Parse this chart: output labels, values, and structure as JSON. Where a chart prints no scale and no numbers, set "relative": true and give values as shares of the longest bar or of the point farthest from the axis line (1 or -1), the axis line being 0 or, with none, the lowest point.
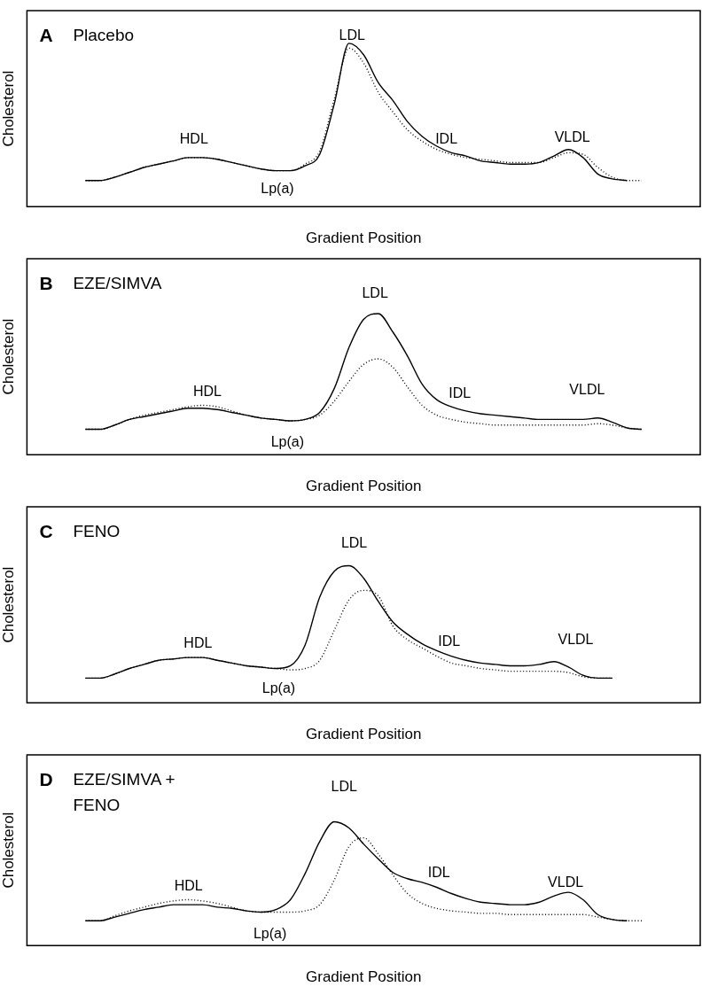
{
  "chart_data": [
    {
      "type": "line",
      "title": "A Placebo",
      "xlabel": "Gradient Position",
      "ylabel": "Cholesterol",
      "relative": true,
      "legend": false,
      "grid": false,
      "marker": "none",
      "annotations": [
        "HDL",
        "Lp(a)",
        "LDL",
        "IDL",
        "VLDL"
      ],
      "categories": [
        null,
        null,
        null,
        null,
        null,
        null,
        null,
        null,
        null,
        null,
        null,
        null,
        null,
        null,
        null,
        null,
        null,
        null,
        null,
        null,
        null,
        null,
        null,
        null,
        null,
        null,
        null,
        null,
        null,
        null,
        null,
        null,
        null,
        null,
        null,
        null,
        null,
        null,
        null,
        null,
        null,
        null,
        null,
        null,
        null,
        null,
        null
      ],
      "series": [
        {
          "color": "#000000",
          "line_style": "solid",
          "values": [
            null,
            null,
            null,
            null,
            0.16,
            0.16,
            0.18,
            0.21,
            0.24,
            0.26,
            0.28,
            0.3,
            0.3,
            0.29,
            0.27,
            0.25,
            0.23,
            0.22,
            0.22,
            0.25,
            0.32,
            0.63,
            1.0,
            0.93,
            0.76,
            0.65,
            0.52,
            0.43,
            0.37,
            0.33,
            0.31,
            0.28,
            0.27,
            0.26,
            0.26,
            0.27,
            0.31,
            0.35,
            0.3,
            0.2,
            0.17,
            0.16,
            null,
            null,
            null,
            null,
            null
          ]
        },
        {
          "color": "#000000",
          "line_style": "dotted",
          "values": [
            null,
            null,
            null,
            null,
            0.16,
            0.16,
            0.18,
            0.21,
            0.24,
            0.26,
            0.28,
            0.3,
            0.3,
            0.29,
            0.27,
            0.25,
            0.23,
            0.22,
            0.22,
            0.26,
            0.34,
            0.66,
            0.97,
            0.88,
            0.7,
            0.58,
            0.47,
            0.4,
            0.35,
            0.32,
            0.3,
            0.29,
            0.28,
            0.27,
            0.27,
            0.27,
            0.3,
            0.33,
            0.32,
            0.24,
            0.18,
            0.16,
            0.16,
            null,
            null,
            null,
            null
          ]
        }
      ]
    },
    {
      "type": "line",
      "title": "B EZE/SIMVA",
      "xlabel": "Gradient Position",
      "ylabel": "Cholesterol",
      "relative": true,
      "legend": false,
      "grid": false,
      "marker": "none",
      "annotations": [
        "HDL",
        "Lp(a)",
        "LDL",
        "IDL",
        "VLDL"
      ],
      "categories": [
        null,
        null,
        null,
        null,
        null,
        null,
        null,
        null,
        null,
        null,
        null,
        null,
        null,
        null,
        null,
        null,
        null,
        null,
        null,
        null,
        null,
        null,
        null,
        null,
        null,
        null,
        null,
        null,
        null,
        null,
        null,
        null,
        null,
        null,
        null,
        null,
        null,
        null,
        null,
        null,
        null,
        null,
        null,
        null,
        null,
        null,
        null
      ],
      "series": [
        {
          "color": "#000000",
          "line_style": "solid",
          "values": [
            null,
            null,
            null,
            null,
            0.18,
            0.18,
            0.21,
            0.25,
            0.27,
            0.29,
            0.31,
            0.33,
            0.33,
            0.32,
            0.3,
            0.28,
            0.26,
            0.25,
            0.24,
            0.25,
            0.3,
            0.47,
            0.76,
            0.96,
            1.0,
            0.87,
            0.7,
            0.5,
            0.39,
            0.34,
            0.31,
            0.29,
            0.28,
            0.27,
            0.26,
            0.25,
            0.25,
            0.25,
            0.25,
            0.26,
            0.23,
            0.19,
            0.18,
            null,
            null,
            null,
            null
          ]
        },
        {
          "color": "#000000",
          "line_style": "dotted",
          "values": [
            null,
            null,
            null,
            null,
            0.18,
            0.18,
            0.21,
            0.25,
            0.28,
            0.3,
            0.32,
            0.34,
            0.35,
            0.34,
            0.31,
            0.28,
            0.26,
            0.25,
            0.24,
            0.25,
            0.28,
            0.38,
            0.52,
            0.64,
            0.68,
            0.62,
            0.48,
            0.35,
            0.28,
            0.25,
            0.23,
            0.22,
            0.21,
            0.21,
            0.21,
            0.21,
            0.21,
            0.21,
            0.21,
            0.22,
            0.21,
            0.19,
            0.18,
            null,
            null,
            null,
            null
          ]
        }
      ]
    },
    {
      "type": "line",
      "title": "C FENO",
      "xlabel": "Gradient Position",
      "ylabel": "Cholesterol",
      "relative": true,
      "legend": false,
      "grid": false,
      "marker": "none",
      "annotations": [
        "HDL",
        "Lp(a)",
        "LDL",
        "IDL",
        "VLDL"
      ],
      "categories": [
        null,
        null,
        null,
        null,
        null,
        null,
        null,
        null,
        null,
        null,
        null,
        null,
        null,
        null,
        null,
        null,
        null,
        null,
        null,
        null,
        null,
        null,
        null,
        null,
        null,
        null,
        null,
        null,
        null,
        null,
        null,
        null,
        null,
        null,
        null,
        null,
        null,
        null,
        null,
        null,
        null,
        null,
        null,
        null,
        null,
        null,
        null
      ],
      "series": [
        {
          "color": "#000000",
          "line_style": "solid",
          "values": [
            null,
            null,
            null,
            null,
            0.18,
            0.18,
            0.21,
            0.25,
            0.28,
            0.31,
            0.32,
            0.33,
            0.33,
            0.31,
            0.29,
            0.27,
            0.26,
            0.25,
            0.27,
            0.42,
            0.77,
            0.96,
            1.0,
            0.91,
            0.74,
            0.59,
            0.5,
            0.43,
            0.38,
            0.34,
            0.31,
            0.29,
            0.28,
            0.27,
            0.27,
            0.28,
            0.3,
            0.26,
            0.2,
            0.18,
            0.18,
            null,
            null,
            null,
            null,
            null,
            null
          ]
        },
        {
          "color": "#000000",
          "line_style": "dotted",
          "values": [
            null,
            null,
            null,
            null,
            0.18,
            0.18,
            0.21,
            0.25,
            0.28,
            0.31,
            0.32,
            0.33,
            0.33,
            0.31,
            0.29,
            0.27,
            0.26,
            0.25,
            0.24,
            0.25,
            0.31,
            0.53,
            0.75,
            0.82,
            0.78,
            0.56,
            0.46,
            0.4,
            0.34,
            0.29,
            0.27,
            0.25,
            0.24,
            0.23,
            0.23,
            0.23,
            0.23,
            0.22,
            0.19,
            0.18,
            0.18,
            null,
            null,
            null,
            null,
            null,
            null
          ]
        }
      ]
    },
    {
      "type": "line",
      "title": "D EZE/SIMVA + FENO",
      "xlabel": "Gradient Position",
      "ylabel": "Cholesterol",
      "relative": true,
      "legend": false,
      "grid": false,
      "marker": "none",
      "annotations": [
        "HDL",
        "Lp(a)",
        "LDL",
        "IDL",
        "VLDL"
      ],
      "categories": [
        null,
        null,
        null,
        null,
        null,
        null,
        null,
        null,
        null,
        null,
        null,
        null,
        null,
        null,
        null,
        null,
        null,
        null,
        null,
        null,
        null,
        null,
        null,
        null,
        null,
        null,
        null,
        null,
        null,
        null,
        null,
        null,
        null,
        null,
        null,
        null,
        null,
        null,
        null,
        null,
        null,
        null,
        null,
        null,
        null,
        null,
        null
      ],
      "series": [
        {
          "color": "#000000",
          "line_style": "solid",
          "values": [
            null,
            null,
            null,
            null,
            0.2,
            0.2,
            0.23,
            0.26,
            0.29,
            0.31,
            0.33,
            0.33,
            0.33,
            0.31,
            0.3,
            0.28,
            0.27,
            0.29,
            0.37,
            0.58,
            0.84,
            1.0,
            0.95,
            0.82,
            0.7,
            0.59,
            0.54,
            0.51,
            0.47,
            0.42,
            0.38,
            0.35,
            0.34,
            0.33,
            0.33,
            0.35,
            0.4,
            0.43,
            0.37,
            0.25,
            0.21,
            0.2,
            null,
            null,
            null,
            null,
            null
          ]
        },
        {
          "color": "#000000",
          "line_style": "dotted",
          "values": [
            null,
            null,
            null,
            null,
            0.2,
            0.2,
            0.24,
            0.28,
            0.31,
            0.34,
            0.36,
            0.37,
            0.36,
            0.34,
            0.31,
            0.28,
            0.27,
            0.27,
            0.27,
            0.28,
            0.33,
            0.53,
            0.8,
            0.87,
            0.74,
            0.57,
            0.42,
            0.34,
            0.3,
            0.28,
            0.27,
            0.26,
            0.26,
            0.25,
            0.25,
            0.25,
            0.25,
            0.25,
            0.25,
            0.23,
            0.21,
            0.2,
            0.2,
            null,
            null,
            null,
            null
          ]
        }
      ]
    }
  ]
}
